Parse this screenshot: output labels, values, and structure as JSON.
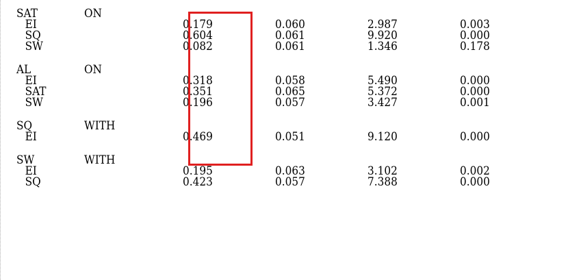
{
  "groups": [
    {
      "name": "SAT",
      "relation": "ON",
      "rows": [
        {
          "var": "EI",
          "estimate": "0.179",
          "se": "0.060",
          "est_se": "2.987",
          "p": "0.003"
        },
        {
          "var": "SQ",
          "estimate": "0.604",
          "se": "0.061",
          "est_se": "9.920",
          "p": "0.000"
        },
        {
          "var": "SW",
          "estimate": "0.082",
          "se": "0.061",
          "est_se": "1.346",
          "p": "0.178"
        }
      ]
    },
    {
      "name": "AL",
      "relation": "ON",
      "rows": [
        {
          "var": "EI",
          "estimate": "0.318",
          "se": "0.058",
          "est_se": "5.490",
          "p": "0.000"
        },
        {
          "var": "SAT",
          "estimate": "0.351",
          "se": "0.065",
          "est_se": "5.372",
          "p": "0.000"
        },
        {
          "var": "SW",
          "estimate": "0.196",
          "se": "0.057",
          "est_se": "3.427",
          "p": "0.001"
        }
      ]
    },
    {
      "name": "SQ",
      "relation": "WITH",
      "rows": [
        {
          "var": "EI",
          "estimate": "0.469",
          "se": "0.051",
          "est_se": "9.120",
          "p": "0.000"
        }
      ]
    },
    {
      "name": "SW",
      "relation": "WITH",
      "rows": [
        {
          "var": "EI",
          "estimate": "0.195",
          "se": "0.063",
          "est_se": "3.102",
          "p": "0.002"
        },
        {
          "var": "SQ",
          "estimate": "0.423",
          "se": "0.057",
          "est_se": "7.388",
          "p": "0.000"
        }
      ]
    }
  ],
  "highlight_color": "#e02020"
}
